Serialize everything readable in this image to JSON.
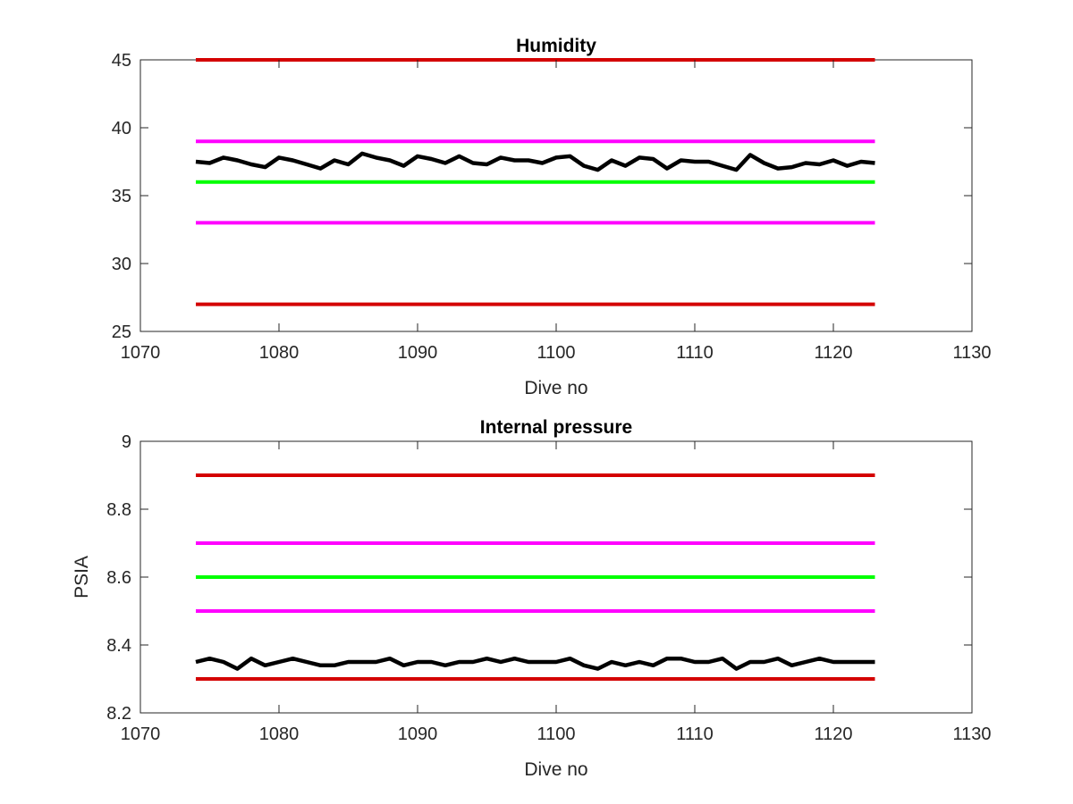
{
  "chart_data": [
    {
      "type": "line",
      "title": "Humidity",
      "xlabel": "Dive no",
      "ylabel": "",
      "xlim": [
        1070,
        1130
      ],
      "ylim": [
        25,
        45
      ],
      "xticks": [
        1070,
        1080,
        1090,
        1100,
        1110,
        1120,
        1130
      ],
      "yticks": [
        25,
        30,
        35,
        40,
        45
      ],
      "xtick_labels": [
        "1070",
        "1080",
        "1090",
        "1100",
        "1110",
        "1120",
        "1130"
      ],
      "ytick_labels": [
        "25",
        "30",
        "35",
        "40",
        "45"
      ],
      "grid": false,
      "series": [
        {
          "color": "#d40000",
          "x": [
            1074,
            1123
          ],
          "y": [
            45,
            45
          ]
        },
        {
          "color": "#ff00ff",
          "x": [
            1074,
            1123
          ],
          "y": [
            39,
            39
          ]
        },
        {
          "color": "#00ff00",
          "x": [
            1074,
            1123
          ],
          "y": [
            36,
            36
          ]
        },
        {
          "color": "#ff00ff",
          "x": [
            1074,
            1123
          ],
          "y": [
            33,
            33
          ]
        },
        {
          "color": "#d40000",
          "x": [
            1074,
            1123
          ],
          "y": [
            27,
            27
          ]
        },
        {
          "color": "#000000",
          "x": [
            1074,
            1075,
            1076,
            1077,
            1078,
            1079,
            1080,
            1081,
            1082,
            1083,
            1084,
            1085,
            1086,
            1087,
            1088,
            1089,
            1090,
            1091,
            1092,
            1093,
            1094,
            1095,
            1096,
            1097,
            1098,
            1099,
            1100,
            1101,
            1102,
            1103,
            1104,
            1105,
            1106,
            1107,
            1108,
            1109,
            1110,
            1111,
            1112,
            1113,
            1114,
            1115,
            1116,
            1117,
            1118,
            1119,
            1120,
            1121,
            1122,
            1123
          ],
          "y": [
            37.5,
            37.4,
            37.8,
            37.6,
            37.3,
            37.1,
            37.8,
            37.6,
            37.3,
            37.0,
            37.6,
            37.3,
            38.1,
            37.8,
            37.6,
            37.2,
            37.9,
            37.7,
            37.4,
            37.9,
            37.4,
            37.3,
            37.8,
            37.6,
            37.6,
            37.4,
            37.8,
            37.9,
            37.2,
            36.9,
            37.6,
            37.2,
            37.8,
            37.7,
            37.0,
            37.6,
            37.5,
            37.5,
            37.2,
            36.9,
            38.0,
            37.4,
            37.0,
            37.1,
            37.4,
            37.3,
            37.6,
            37.2,
            37.5,
            37.4
          ]
        }
      ]
    },
    {
      "type": "line",
      "title": "Internal pressure",
      "xlabel": "Dive no",
      "ylabel": "PSIA",
      "xlim": [
        1070,
        1130
      ],
      "ylim": [
        8.2,
        9
      ],
      "xticks": [
        1070,
        1080,
        1090,
        1100,
        1110,
        1120,
        1130
      ],
      "yticks": [
        8.2,
        8.4,
        8.6,
        8.8,
        9
      ],
      "xtick_labels": [
        "1070",
        "1080",
        "1090",
        "1100",
        "1110",
        "1120",
        "1130"
      ],
      "ytick_labels": [
        "8.2",
        "8.4",
        "8.6",
        "8.8",
        "9"
      ],
      "grid": false,
      "series": [
        {
          "color": "#d40000",
          "x": [
            1074,
            1123
          ],
          "y": [
            8.9,
            8.9
          ]
        },
        {
          "color": "#ff00ff",
          "x": [
            1074,
            1123
          ],
          "y": [
            8.7,
            8.7
          ]
        },
        {
          "color": "#00ff00",
          "x": [
            1074,
            1123
          ],
          "y": [
            8.6,
            8.6
          ]
        },
        {
          "color": "#ff00ff",
          "x": [
            1074,
            1123
          ],
          "y": [
            8.5,
            8.5
          ]
        },
        {
          "color": "#d40000",
          "x": [
            1074,
            1123
          ],
          "y": [
            8.3,
            8.3
          ]
        },
        {
          "color": "#000000",
          "x": [
            1074,
            1075,
            1076,
            1077,
            1078,
            1079,
            1080,
            1081,
            1082,
            1083,
            1084,
            1085,
            1086,
            1087,
            1088,
            1089,
            1090,
            1091,
            1092,
            1093,
            1094,
            1095,
            1096,
            1097,
            1098,
            1099,
            1100,
            1101,
            1102,
            1103,
            1104,
            1105,
            1106,
            1107,
            1108,
            1109,
            1110,
            1111,
            1112,
            1113,
            1114,
            1115,
            1116,
            1117,
            1118,
            1119,
            1120,
            1121,
            1122,
            1123
          ],
          "y": [
            8.35,
            8.36,
            8.35,
            8.33,
            8.36,
            8.34,
            8.35,
            8.36,
            8.35,
            8.34,
            8.34,
            8.35,
            8.35,
            8.35,
            8.36,
            8.34,
            8.35,
            8.35,
            8.34,
            8.35,
            8.35,
            8.36,
            8.35,
            8.36,
            8.35,
            8.35,
            8.35,
            8.36,
            8.34,
            8.33,
            8.35,
            8.34,
            8.35,
            8.34,
            8.36,
            8.36,
            8.35,
            8.35,
            8.36,
            8.33,
            8.35,
            8.35,
            8.36,
            8.34,
            8.35,
            8.36,
            8.35,
            8.35,
            8.35,
            8.35
          ]
        }
      ]
    }
  ]
}
